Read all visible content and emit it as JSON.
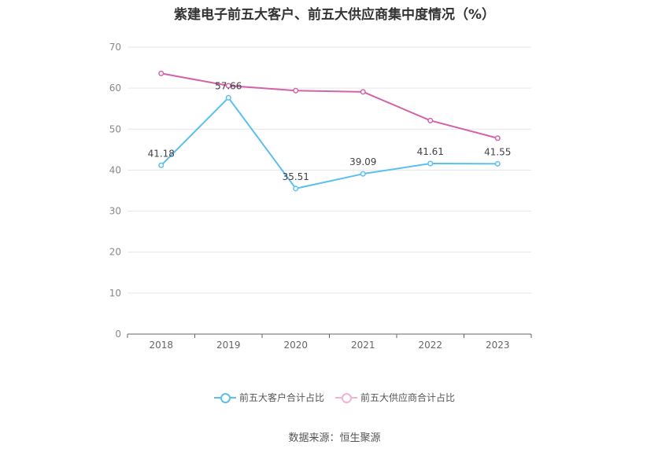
{
  "chart_data": {
    "type": "line",
    "title": "紫建电子前五大客户、前五大供应商集中度情况（%）",
    "categories": [
      "2018",
      "2019",
      "2020",
      "2021",
      "2022",
      "2023"
    ],
    "ylim": [
      0,
      70
    ],
    "yticks": [
      "0",
      "10",
      "20",
      "30",
      "40",
      "50",
      "60",
      "70"
    ],
    "grid": true,
    "legend_position": "bottom",
    "series": [
      {
        "name": "前五大客户合计占比",
        "color": "#5bbfef",
        "values": [
          41.18,
          57.66,
          35.51,
          39.09,
          41.61,
          41.55
        ],
        "labels": [
          "41.18",
          "57.66",
          "35.51",
          "39.09",
          "41.61",
          "41.55"
        ],
        "show_labels": true
      },
      {
        "name": "前五大供应商合计占比",
        "color": "#d462a8",
        "values": [
          63.6,
          60.6,
          59.4,
          59.1,
          52.1,
          47.8
        ],
        "show_labels": false
      }
    ],
    "source": "数据来源：恒生聚源"
  }
}
